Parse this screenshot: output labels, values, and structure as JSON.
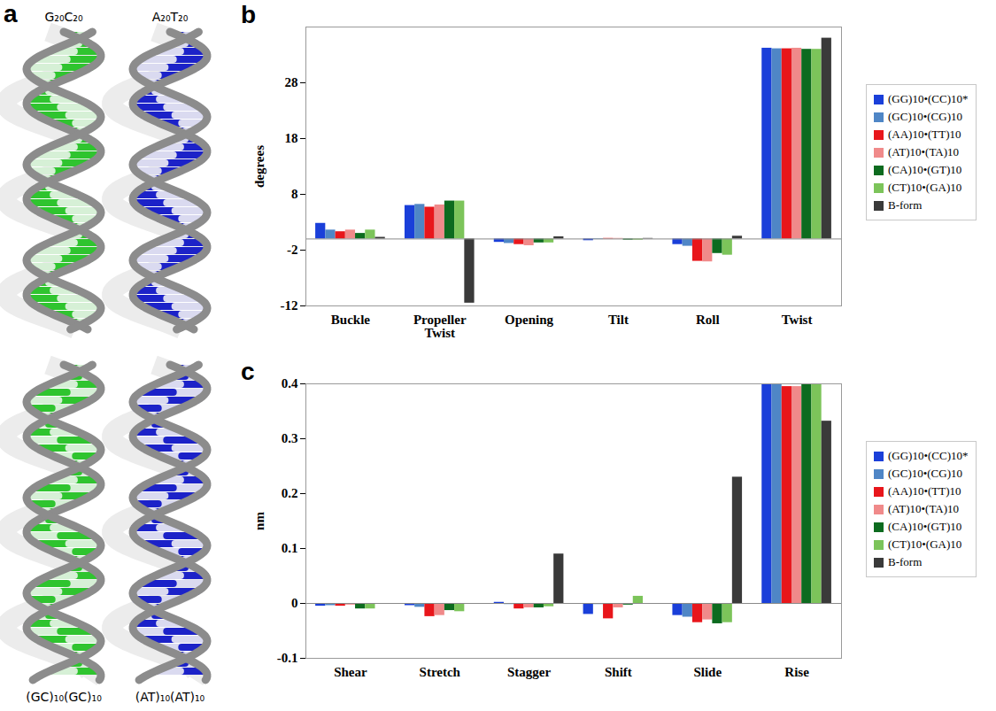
{
  "panel_a": {
    "panel": "a",
    "rows": [
      [
        {
          "label": "G₂₀C₂₀",
          "colors": [
            "#2fc42f",
            "#d6f0d6"
          ]
        },
        {
          "label": "A₂₀T₂₀",
          "colors": [
            "#1c22c8",
            "#dadaf0"
          ]
        }
      ],
      [
        {
          "label": "(GC)₁₀(GC)₁₀",
          "colors": [
            "#2fc42f",
            "#d6f0d6"
          ]
        },
        {
          "label": "(AT)₁₀(AT)₁₀",
          "colors": [
            "#1c22c8",
            "#dadaf0"
          ]
        }
      ]
    ]
  },
  "chart_data": [
    {
      "panel": "b",
      "type": "bar",
      "ylabel": "degrees",
      "categories": [
        "Buckle",
        "Propeller Twist",
        "Opening",
        "Tilt",
        "Roll",
        "Twist"
      ],
      "ylim": [
        -12,
        38
      ],
      "yticks": [
        -12,
        -2,
        8,
        18,
        28
      ],
      "grid": false,
      "legend": "right",
      "series": [
        {
          "name": "(GG)10•(CC)10*",
          "color": "#1a3fd9",
          "values": [
            2.8,
            6.0,
            -0.6,
            -0.3,
            -1.0,
            34.2
          ]
        },
        {
          "name": "(GC)10•(CG)10",
          "color": "#4f86c6",
          "values": [
            1.6,
            6.2,
            -0.8,
            -0.1,
            -1.3,
            34.1
          ]
        },
        {
          "name": "(AA)10•(TT)10",
          "color": "#e8161b",
          "values": [
            1.3,
            5.7,
            -1.0,
            0.1,
            -4.0,
            34.1
          ]
        },
        {
          "name": "(AT)10•(TA)10",
          "color": "#f08a8a",
          "values": [
            1.6,
            6.1,
            -1.2,
            0.1,
            -4.1,
            34.2
          ]
        },
        {
          "name": "(CA)10•(GT)10",
          "color": "#0d6b1f",
          "values": [
            1.0,
            6.8,
            -0.7,
            -0.2,
            -2.6,
            34.0
          ]
        },
        {
          "name": "(CT)10•(GA)10",
          "color": "#7cc45a",
          "values": [
            1.6,
            6.8,
            -0.7,
            -0.2,
            -2.9,
            34.0
          ]
        },
        {
          "name": "B-form",
          "color": "#3a3a3a",
          "values": [
            0.3,
            -11.5,
            0.4,
            0.1,
            0.5,
            36.0
          ]
        }
      ]
    },
    {
      "panel": "c",
      "type": "bar",
      "ylabel": "nm",
      "categories": [
        "Shear",
        "Stretch",
        "Stagger",
        "Shift",
        "Slide",
        "Rise"
      ],
      "ylim": [
        -0.1,
        0.4
      ],
      "yticks": [
        -0.1,
        0,
        0.1,
        0.2,
        0.3,
        0.4
      ],
      "grid": false,
      "legend": "right",
      "series": [
        {
          "name": "(GG)10•(CC)10*",
          "color": "#1a3fd9",
          "values": [
            -0.005,
            -0.004,
            0.002,
            -0.02,
            -0.022,
            0.4
          ]
        },
        {
          "name": "(GC)10•(CG)10",
          "color": "#4f86c6",
          "values": [
            -0.004,
            -0.007,
            -0.002,
            -0.002,
            -0.025,
            0.4
          ]
        },
        {
          "name": "(AA)10•(TT)10",
          "color": "#e8161b",
          "values": [
            -0.005,
            -0.024,
            -0.01,
            -0.028,
            -0.035,
            0.395
          ]
        },
        {
          "name": "(AT)10•(TA)10",
          "color": "#f08a8a",
          "values": [
            -0.003,
            -0.022,
            -0.008,
            -0.008,
            -0.03,
            0.395
          ]
        },
        {
          "name": "(CA)10•(GT)10",
          "color": "#0d6b1f",
          "values": [
            -0.01,
            -0.013,
            -0.008,
            -0.003,
            -0.037,
            0.4
          ]
        },
        {
          "name": "(CT)10•(GA)10",
          "color": "#7cc45a",
          "values": [
            -0.01,
            -0.015,
            -0.006,
            0.013,
            -0.035,
            0.4
          ]
        },
        {
          "name": "B-form",
          "color": "#3a3a3a",
          "values": [
            0,
            0,
            0.09,
            0,
            0.23,
            0.332
          ]
        }
      ]
    }
  ]
}
